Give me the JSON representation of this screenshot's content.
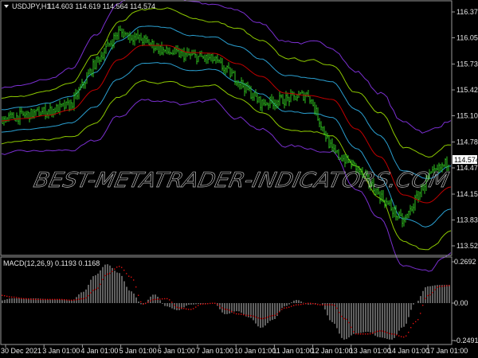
{
  "header": {
    "symbol": "USDJPY,H1",
    "ohlc": "114.603 114.619 114.564 114.574"
  },
  "macd_header": {
    "label": "MACD(12,26,9) 0.1193 0.1168"
  },
  "current_price": "114.574",
  "watermark": "BEST-METATRADER-INDICATORS.COM",
  "colors": {
    "background": "#000000",
    "price_bars": "#2fc21f",
    "middle_band": "#c00000",
    "band_1": "#2a9fd0",
    "band_2": "#8cc800",
    "band_3": "#7a2fd0",
    "macd_histogram": "#c0c0c0",
    "macd_signal": "#e01010",
    "axis_text": "#e6e6e6"
  },
  "chart_data": [
    {
      "type": "line",
      "title": "USDJPY,H1",
      "x_ticks": [
        "30 Dec 2021",
        "3 Jan 01:00",
        "4 Jan 01:00",
        "5 Jan 01:00",
        "6 Jan 01:00",
        "7 Jan 01:00",
        "10 Jan 01:00",
        "11 Jan 01:00",
        "12 Jan 01:00",
        "13 Jan 01:00",
        "14 Jan 01:00",
        "17 Jan 01:00"
      ],
      "y_ticks": [
        "116.370",
        "116.055",
        "115.735",
        "115.420",
        "115.105",
        "114.785",
        "114.470",
        "114.150",
        "113.835",
        "113.520"
      ],
      "ylim": [
        113.52,
        116.37
      ],
      "grid": false,
      "price_close_sampled": [
        115.061,
        115.11,
        115.158,
        115.236,
        115.74,
        116.128,
        116.031,
        115.885,
        115.837,
        115.788,
        115.546,
        115.255,
        115.304,
        115.371,
        114.674,
        114.48,
        114.14,
        113.801,
        114.334,
        114.574
      ],
      "middle_band": [
        115.042,
        115.071,
        115.11,
        115.178,
        115.42,
        115.788,
        115.963,
        115.963,
        115.876,
        115.866,
        115.74,
        115.585,
        115.381,
        115.352,
        115.304,
        114.945,
        114.606,
        114.14,
        114.043,
        114.237
      ],
      "band_step": [
        0.136,
        0.136,
        0.145,
        0.165,
        0.213,
        0.233,
        0.223,
        0.223,
        0.213,
        0.194,
        0.213,
        0.213,
        0.213,
        0.213,
        0.213,
        0.233,
        0.262,
        0.291,
        0.291,
        0.271
      ],
      "band_multipliers": [
        1,
        2,
        3
      ]
    },
    {
      "type": "bar",
      "title": "MACD(12,26,9)",
      "y_ticks": [
        "0.2692",
        "0.00",
        "-0.2491"
      ],
      "ylim": [
        -0.2491,
        0.2692
      ],
      "histogram": [
        0.016,
        0.031,
        0.031,
        0.031,
        0.026,
        0.026,
        0.016,
        0.073,
        0.181,
        0.254,
        0.197,
        0.078,
        -0.01,
        0.057,
        -0.021,
        -0.047,
        -0.01,
        -0.005,
        0.0,
        -0.073,
        -0.052,
        -0.093,
        -0.161,
        -0.109,
        -0.021,
        0.021,
        -0.01,
        0.0,
        -0.124,
        -0.238,
        -0.197,
        -0.187,
        -0.223,
        -0.238,
        -0.155,
        0.0,
        0.109,
        0.118,
        0.1193
      ],
      "signal": [
        0.052,
        0.04,
        0.03,
        0.025,
        0.025,
        0.025,
        0.02,
        0.03,
        0.09,
        0.19,
        0.24,
        0.17,
        -0.005,
        0.025,
        0.03,
        -0.03,
        -0.04,
        -0.005,
        0.0,
        -0.04,
        -0.07,
        -0.08,
        -0.1,
        -0.08,
        -0.03,
        -0.01,
        0.0,
        -0.01,
        -0.01,
        -0.1,
        -0.2,
        -0.2,
        -0.18,
        -0.2,
        -0.22,
        -0.12,
        0.05,
        0.11,
        0.1168
      ]
    }
  ]
}
